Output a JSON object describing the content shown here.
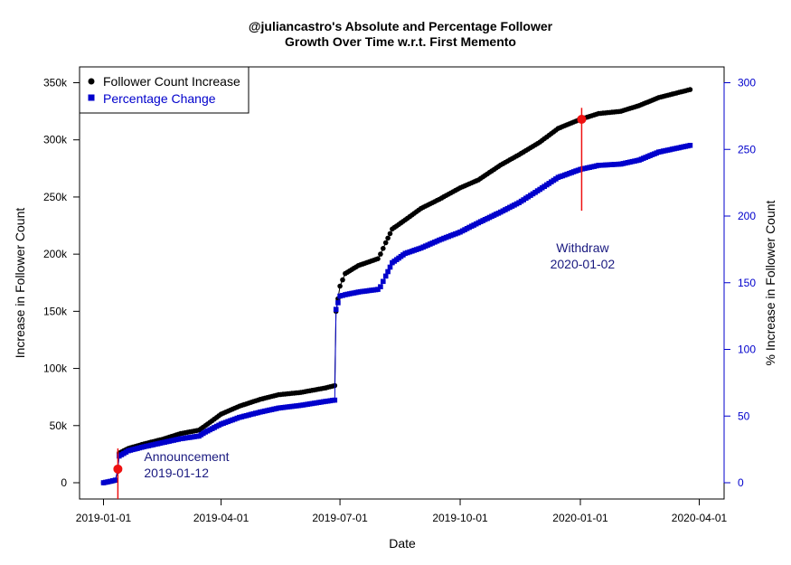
{
  "chart_data": {
    "type": "line",
    "title_line1": "@juliancastro's Absolute and Percentage Follower",
    "title_line2": "Growth Over Time w.r.t. First Memento",
    "xlabel": "Date",
    "ylabel_left": "Increase in Follower Count",
    "ylabel_right": "% Increase in Follower Count",
    "xlim": [
      "2019-01-01",
      "2020-03-29"
    ],
    "ylim_left": [
      0,
      350000
    ],
    "ylim_right": [
      0,
      300
    ],
    "x_ticks": [
      "2019-01-01",
      "2019-04-01",
      "2019-07-01",
      "2019-10-01",
      "2020-01-01",
      "2020-04-01"
    ],
    "y_ticks_left": [
      {
        "value": 0,
        "label": "0"
      },
      {
        "value": 50000,
        "label": "50k"
      },
      {
        "value": 100000,
        "label": "100k"
      },
      {
        "value": 150000,
        "label": "150k"
      },
      {
        "value": 200000,
        "label": "200k"
      },
      {
        "value": 250000,
        "label": "250k"
      },
      {
        "value": 300000,
        "label": "300k"
      },
      {
        "value": 350000,
        "label": "350k"
      }
    ],
    "y_ticks_right": [
      {
        "value": 0,
        "label": "0"
      },
      {
        "value": 50,
        "label": "50"
      },
      {
        "value": 100,
        "label": "100"
      },
      {
        "value": 150,
        "label": "150"
      },
      {
        "value": 200,
        "label": "200"
      },
      {
        "value": 250,
        "label": "250"
      },
      {
        "value": 300,
        "label": "300"
      }
    ],
    "legend": {
      "placement": "top-left",
      "entries": [
        {
          "label": "Follower Count Increase",
          "color": "#000000",
          "marker": "circle"
        },
        {
          "label": "Percentage Change",
          "color": "#0000cc",
          "marker": "square"
        }
      ]
    },
    "series": [
      {
        "name": "Follower Count Increase",
        "axis": "left",
        "color": "#000000",
        "points": [
          [
            "2019-01-01",
            0
          ],
          [
            "2019-01-06",
            1000
          ],
          [
            "2019-01-10",
            2000
          ],
          [
            "2019-01-12",
            10000
          ],
          [
            "2019-01-13",
            26000
          ],
          [
            "2019-01-20",
            30000
          ],
          [
            "2019-02-01",
            34000
          ],
          [
            "2019-02-15",
            38000
          ],
          [
            "2019-03-01",
            43000
          ],
          [
            "2019-03-15",
            46000
          ],
          [
            "2019-03-20",
            50000
          ],
          [
            "2019-04-01",
            60000
          ],
          [
            "2019-04-15",
            67000
          ],
          [
            "2019-05-01",
            73000
          ],
          [
            "2019-05-15",
            77000
          ],
          [
            "2019-06-01",
            79000
          ],
          [
            "2019-06-20",
            83000
          ],
          [
            "2019-06-27",
            85000
          ],
          [
            "2019-06-28",
            150000
          ],
          [
            "2019-07-01",
            172000
          ],
          [
            "2019-07-05",
            183000
          ],
          [
            "2019-07-15",
            190000
          ],
          [
            "2019-07-30",
            196000
          ],
          [
            "2019-08-01",
            200000
          ],
          [
            "2019-08-05",
            210000
          ],
          [
            "2019-08-10",
            222000
          ],
          [
            "2019-08-20",
            230000
          ],
          [
            "2019-09-01",
            240000
          ],
          [
            "2019-09-15",
            248000
          ],
          [
            "2019-10-01",
            258000
          ],
          [
            "2019-10-15",
            265000
          ],
          [
            "2019-11-01",
            278000
          ],
          [
            "2019-11-15",
            287000
          ],
          [
            "2019-12-01",
            298000
          ],
          [
            "2019-12-15",
            310000
          ],
          [
            "2020-01-01",
            318000
          ],
          [
            "2020-01-15",
            323000
          ],
          [
            "2020-02-01",
            325000
          ],
          [
            "2020-02-15",
            330000
          ],
          [
            "2020-03-01",
            337000
          ],
          [
            "2020-03-25",
            344000
          ]
        ]
      },
      {
        "name": "Percentage Change",
        "axis": "right",
        "color": "#0000cc",
        "points": [
          [
            "2019-01-01",
            0
          ],
          [
            "2019-01-06",
            1
          ],
          [
            "2019-01-10",
            2
          ],
          [
            "2019-01-12",
            10
          ],
          [
            "2019-01-13",
            20
          ],
          [
            "2019-01-20",
            24
          ],
          [
            "2019-02-01",
            27
          ],
          [
            "2019-02-15",
            30
          ],
          [
            "2019-03-01",
            33
          ],
          [
            "2019-03-15",
            35
          ],
          [
            "2019-03-20",
            38
          ],
          [
            "2019-04-01",
            44
          ],
          [
            "2019-04-15",
            49
          ],
          [
            "2019-05-01",
            53
          ],
          [
            "2019-05-15",
            56
          ],
          [
            "2019-06-01",
            58
          ],
          [
            "2019-06-20",
            61
          ],
          [
            "2019-06-27",
            62
          ],
          [
            "2019-06-28",
            130
          ],
          [
            "2019-07-01",
            140
          ],
          [
            "2019-07-05",
            141
          ],
          [
            "2019-07-15",
            143
          ],
          [
            "2019-07-30",
            145
          ],
          [
            "2019-08-01",
            147
          ],
          [
            "2019-08-05",
            155
          ],
          [
            "2019-08-10",
            165
          ],
          [
            "2019-08-20",
            172
          ],
          [
            "2019-09-01",
            176
          ],
          [
            "2019-09-15",
            182
          ],
          [
            "2019-10-01",
            188
          ],
          [
            "2019-10-15",
            195
          ],
          [
            "2019-11-01",
            203
          ],
          [
            "2019-11-15",
            210
          ],
          [
            "2019-12-01",
            220
          ],
          [
            "2019-12-15",
            229
          ],
          [
            "2020-01-01",
            235
          ],
          [
            "2020-01-15",
            238
          ],
          [
            "2020-02-01",
            239
          ],
          [
            "2020-02-15",
            242
          ],
          [
            "2020-03-01",
            248
          ],
          [
            "2020-03-25",
            253
          ]
        ]
      }
    ],
    "events": [
      {
        "date": "2019-01-12",
        "label": "Announcement",
        "date_label": "2019-01-12",
        "marker_value_left": 12000,
        "line_from": 0,
        "line_to": 30000,
        "color": "#ee1111"
      },
      {
        "date": "2020-01-02",
        "label": "Withdraw",
        "date_label": "2020-01-02",
        "marker_value_left": 318000,
        "line_from": 238000,
        "line_to": 328000,
        "color": "#ee1111"
      }
    ]
  }
}
